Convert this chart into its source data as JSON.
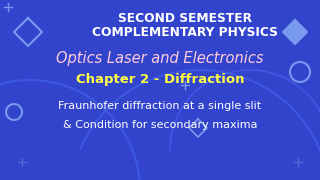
{
  "bg_color": "#3344cc",
  "title_line1": "SECOND SEMESTER",
  "title_line2": "COMPLEMENTARY PHYSICS",
  "subtitle": "Optics Laser and Electronics",
  "chapter": "Chapter 2 - Diffraction",
  "desc_line1": "Fraunhofer diffraction at a single slit",
  "desc_line2": "& Condition for secondary maxima",
  "title_color": "#ffffff",
  "subtitle_color": "#ffccdd",
  "chapter_color": "#ffff44",
  "desc_color": "#ffffff",
  "title_fontsize": 8.8,
  "subtitle_fontsize": 10.5,
  "chapter_fontsize": 9.5,
  "desc_fontsize": 8.0,
  "wave_color": "#4466ee",
  "wave_color2": "#5577ff",
  "shape_color": "#7799ee",
  "cross_color": "#5566cc"
}
